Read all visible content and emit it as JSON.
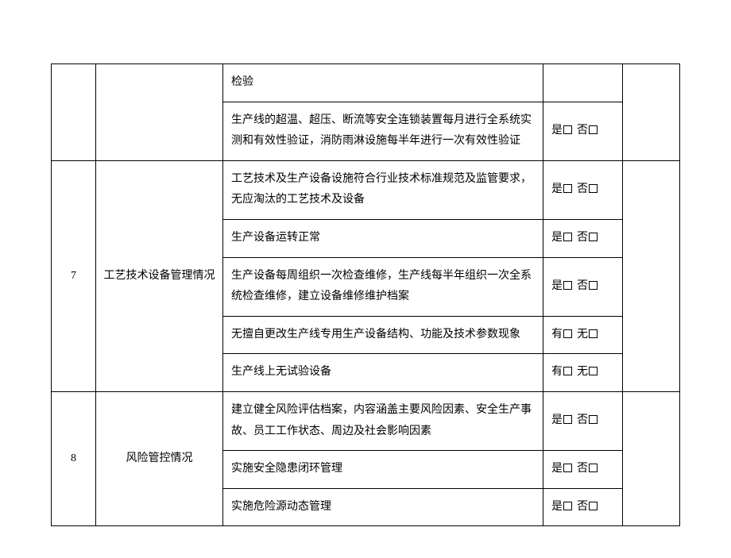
{
  "options": {
    "yes": "是",
    "no": "否",
    "have": "有",
    "none": "无"
  },
  "columns": {
    "num_width": 56,
    "cat_width": 160,
    "opt_width": 100,
    "last_width": 72
  },
  "sections": [
    {
      "num": "",
      "category": "",
      "continuation": true,
      "rows": [
        {
          "desc": "检验",
          "opt": null
        },
        {
          "desc": "生产线的超温、超压、断流等安全连锁装置每月进行全系统实测和有效性验证，消防雨淋设施每半年进行一次有效性验证",
          "opt": "yesno"
        }
      ]
    },
    {
      "num": "7",
      "category": "工艺技术设备管理情况",
      "rows": [
        {
          "desc": "工艺技术及生产设备设施符合行业技术标准规范及监管要求，无应淘汰的工艺技术及设备",
          "opt": "yesno"
        },
        {
          "desc": "生产设备运转正常",
          "opt": "yesno"
        },
        {
          "desc": "生产设备每周组织一次检查维修，生产线每半年组织一次全系统检查维修，建立设备维修维护档案",
          "opt": "yesno"
        },
        {
          "desc": "无擅自更改生产线专用生产设备结构、功能及技术参数现象",
          "opt": "havenone"
        },
        {
          "desc": "生产线上无试验设备",
          "opt": "havenone"
        }
      ]
    },
    {
      "num": "8",
      "category": "风险管控情况",
      "rows": [
        {
          "desc": "建立健全风险评估档案，内容涵盖主要风险因素、安全生产事故、员工工作状态、周边及社会影响因素",
          "opt": "yesno"
        },
        {
          "desc": "实施安全隐患闭环管理",
          "opt": "yesno"
        },
        {
          "desc": "实施危险源动态管理",
          "opt": "yesno"
        }
      ]
    }
  ]
}
